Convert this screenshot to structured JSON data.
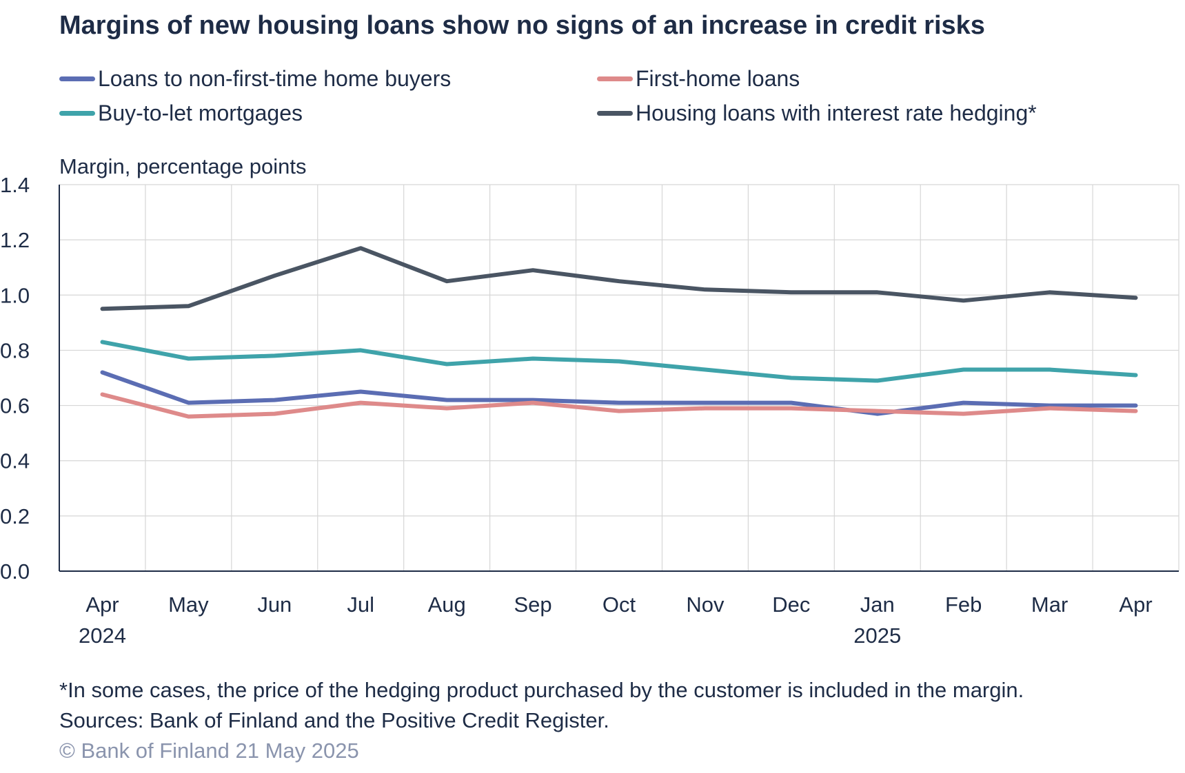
{
  "title": "Margins of new housing loans show no signs of an increase in credit risks",
  "footnote": "*In some cases, the price of the hedging product purchased by the customer is included in the margin.",
  "sources": "Sources: Bank of Finland and the Positive Credit Register.",
  "copyright": "© Bank of Finland 21 May 2025",
  "legend": [
    {
      "label": "Loans to non-first-time home buyers",
      "color": "#5b6db3"
    },
    {
      "label": "First-home loans",
      "color": "#de8a8a"
    },
    {
      "label": "Buy-to-let mortgages",
      "color": "#3fa3aa"
    },
    {
      "label": "Housing loans with interest rate hedging*",
      "color": "#4a5563"
    }
  ],
  "chart_data": {
    "type": "line",
    "title": "Margins of new housing loans show no signs of an increase in credit risks",
    "ylabel": "Margin, percentage points",
    "xlabel": "",
    "ylim": [
      0,
      1.4
    ],
    "yticks": [
      "0.0",
      "0.2",
      "0.4",
      "0.6",
      "0.8",
      "1.0",
      "1.2",
      "1.4"
    ],
    "grid": true,
    "legend_position": "top",
    "categories": [
      "Apr",
      "May",
      "Jun",
      "Jul",
      "Aug",
      "Sep",
      "Oct",
      "Nov",
      "Dec",
      "Jan",
      "Feb",
      "Mar",
      "Apr"
    ],
    "year_labels": [
      "2024",
      "",
      "",
      "",
      "",
      "",
      "",
      "",
      "",
      "2025",
      "",
      "",
      ""
    ],
    "series": [
      {
        "name": "Loans to non-first-time home buyers",
        "color": "#5b6db3",
        "values": [
          0.72,
          0.61,
          0.62,
          0.65,
          0.62,
          0.62,
          0.61,
          0.61,
          0.61,
          0.57,
          0.61,
          0.6,
          0.6
        ]
      },
      {
        "name": "First-home loans",
        "color": "#de8a8a",
        "values": [
          0.64,
          0.56,
          0.57,
          0.61,
          0.59,
          0.61,
          0.58,
          0.59,
          0.59,
          0.58,
          0.57,
          0.59,
          0.58
        ]
      },
      {
        "name": "Buy-to-let mortgages",
        "color": "#3fa3aa",
        "values": [
          0.83,
          0.77,
          0.78,
          0.8,
          0.75,
          0.77,
          0.76,
          0.73,
          0.7,
          0.69,
          0.73,
          0.73,
          0.71
        ]
      },
      {
        "name": "Housing loans with interest rate hedging*",
        "color": "#4a5563",
        "values": [
          0.95,
          0.96,
          1.07,
          1.17,
          1.05,
          1.09,
          1.05,
          1.02,
          1.01,
          1.01,
          0.98,
          1.01,
          0.99
        ]
      }
    ]
  }
}
